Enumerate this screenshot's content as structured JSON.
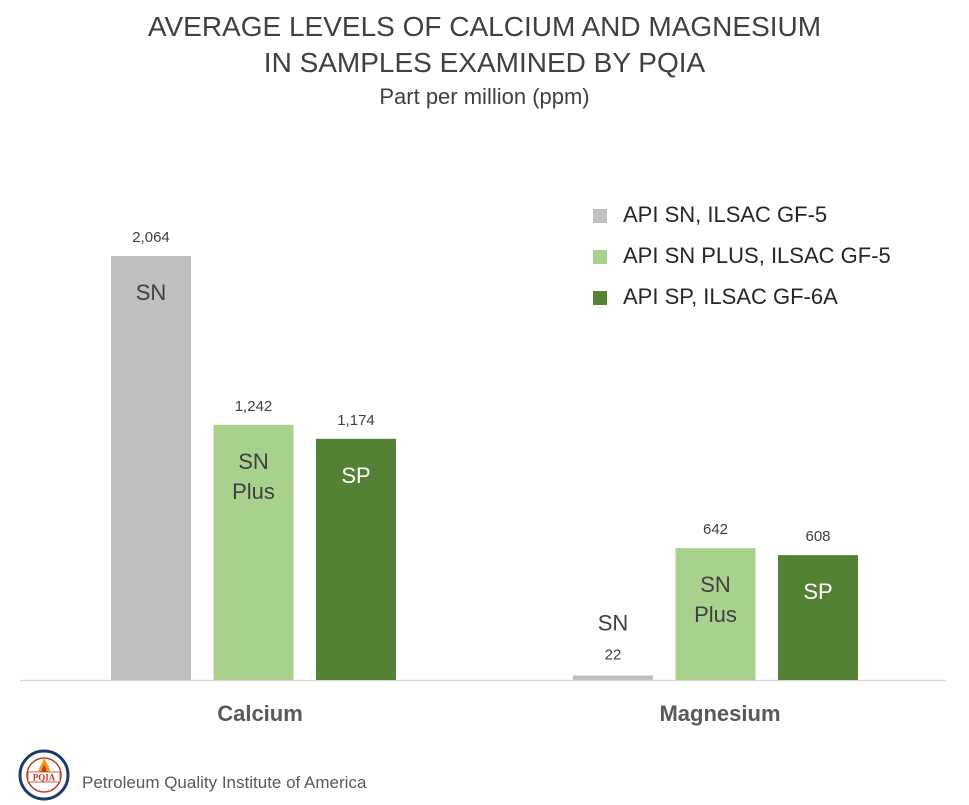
{
  "chart_data": {
    "type": "bar",
    "title_lines": [
      "AVERAGE LEVELS OF CALCIUM AND MAGNESIUM",
      "IN SAMPLES EXAMINED BY PQIA"
    ],
    "subtitle": "Part per million (ppm)",
    "categories": [
      "Calcium",
      "Magnesium"
    ],
    "series": [
      {
        "name": "API SN, ILSAC GF-5",
        "bar_label": [
          "SN"
        ],
        "color": "#bfbfbf",
        "values": [
          2064,
          22
        ]
      },
      {
        "name": "API SN PLUS, ILSAC GF-5",
        "bar_label": [
          "SN",
          "Plus"
        ],
        "color": "#a9d18e",
        "values": [
          1242,
          642
        ]
      },
      {
        "name": "API SP, ILSAC GF-6A",
        "bar_label": [
          "SP"
        ],
        "color": "#548235",
        "values": [
          1174,
          608
        ]
      }
    ],
    "value_labels": [
      [
        "2,064",
        "22"
      ],
      [
        "1,242",
        "642"
      ],
      [
        "1,174",
        "608"
      ]
    ],
    "ylim": [
      0,
      2064
    ],
    "grid": false,
    "legend_position": "top-right"
  },
  "footer": {
    "organization": "Petroleum Quality Institute of America",
    "logo_text": "PQIA",
    "logo_icon": "pqia-seal-logo"
  }
}
